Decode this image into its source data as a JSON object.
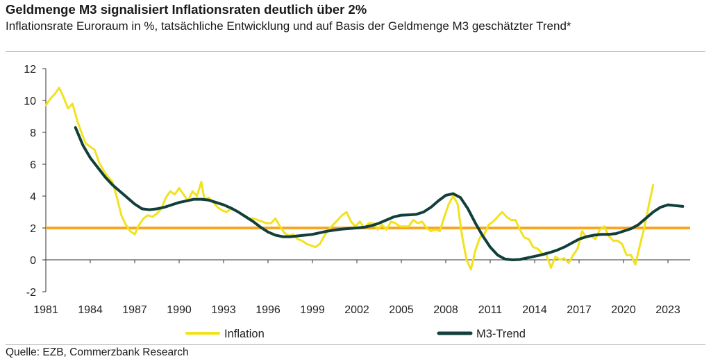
{
  "title": "Geldmenge M3 signalisiert Inflationsraten deutlich über 2%",
  "subtitle": "Inflationsrate Euroraum in %, tatsächliche Entwicklung und auf Basis der Geldmenge M3 geschätzter Trend*",
  "source": "Quelle: EZB, Commerzbank Research",
  "chart_data": {
    "type": "line",
    "xlim": [
      1981,
      2024.5
    ],
    "ylim": [
      -2,
      12
    ],
    "x_ticks": [
      "1981",
      "1984",
      "1987",
      "1990",
      "1993",
      "1996",
      "1999",
      "2002",
      "2005",
      "2008",
      "2011",
      "2014",
      "2017",
      "2020",
      "2023"
    ],
    "y_ticks": [
      "12",
      "10",
      "8",
      "6",
      "4",
      "2",
      "0",
      "-2"
    ],
    "reference_line": {
      "y": 2,
      "color": "#f5a623"
    },
    "legend_position": "bottom",
    "series": [
      {
        "name": "Inflation",
        "color": "#f2e21e",
        "x": [
          1981,
          1981.3,
          1981.6,
          1981.9,
          1982.2,
          1982.5,
          1982.8,
          1983.1,
          1983.4,
          1983.7,
          1984,
          1984.3,
          1984.6,
          1984.9,
          1985.2,
          1985.5,
          1985.8,
          1986.1,
          1986.4,
          1986.7,
          1987,
          1987.3,
          1987.6,
          1987.9,
          1988.2,
          1988.5,
          1988.8,
          1989.1,
          1989.4,
          1989.7,
          1990,
          1990.3,
          1990.6,
          1990.9,
          1991.2,
          1991.5,
          1991.7,
          1992,
          1992.3,
          1992.6,
          1992.9,
          1993.2,
          1993.5,
          1993.8,
          1994.1,
          1994.4,
          1994.7,
          1995,
          1995.3,
          1995.6,
          1995.9,
          1996.2,
          1996.5,
          1996.8,
          1997.1,
          1997.4,
          1997.7,
          1998,
          1998.3,
          1998.6,
          1998.9,
          1999.2,
          1999.5,
          1999.8,
          2000.1,
          2000.4,
          2000.7,
          2001,
          2001.3,
          2001.6,
          2001.9,
          2002.2,
          2002.5,
          2002.8,
          2003.1,
          2003.4,
          2003.7,
          2004,
          2004.3,
          2004.6,
          2004.9,
          2005.2,
          2005.5,
          2005.8,
          2006.1,
          2006.4,
          2006.7,
          2007,
          2007.3,
          2007.6,
          2007.9,
          2008.2,
          2008.5,
          2008.8,
          2009.1,
          2009.4,
          2009.7,
          2010,
          2010.3,
          2010.6,
          2010.9,
          2011.2,
          2011.5,
          2011.8,
          2012.1,
          2012.4,
          2012.7,
          2013,
          2013.3,
          2013.6,
          2013.9,
          2014.2,
          2014.5,
          2014.8,
          2015.1,
          2015.4,
          2015.7,
          2016,
          2016.3,
          2016.6,
          2016.9,
          2017.2,
          2017.5,
          2017.8,
          2018.1,
          2018.4,
          2018.7,
          2019,
          2019.3,
          2019.6,
          2019.9,
          2020.2,
          2020.5,
          2020.8,
          2021.1,
          2021.4,
          2021.7,
          2022
        ],
        "y": [
          9.7,
          10.1,
          10.4,
          10.8,
          10.2,
          9.5,
          9.8,
          8.8,
          8.0,
          7.3,
          7.1,
          6.9,
          6.1,
          5.6,
          5.2,
          4.9,
          3.9,
          2.8,
          2.2,
          1.8,
          1.6,
          2.2,
          2.6,
          2.8,
          2.7,
          2.9,
          3.2,
          3.9,
          4.3,
          4.1,
          4.5,
          4.1,
          3.7,
          4.3,
          4.0,
          4.9,
          3.8,
          3.9,
          3.6,
          3.3,
          3.1,
          3.0,
          3.2,
          3.1,
          2.9,
          2.8,
          2.6,
          2.6,
          2.5,
          2.4,
          2.3,
          2.3,
          2.6,
          2.1,
          1.7,
          1.5,
          1.6,
          1.3,
          1.2,
          1.0,
          0.9,
          0.8,
          1.0,
          1.5,
          1.9,
          2.2,
          2.5,
          2.8,
          3.0,
          2.4,
          2.1,
          2.4,
          2.0,
          2.3,
          2.3,
          1.9,
          2.2,
          1.9,
          2.4,
          2.3,
          2.1,
          2.1,
          2.1,
          2.5,
          2.3,
          2.4,
          2.0,
          1.8,
          1.9,
          1.8,
          2.7,
          3.5,
          4.0,
          3.5,
          1.5,
          0.0,
          -0.6,
          0.6,
          1.4,
          1.6,
          2.2,
          2.4,
          2.7,
          3.0,
          2.7,
          2.5,
          2.5,
          1.9,
          1.4,
          1.3,
          0.8,
          0.7,
          0.4,
          0.3,
          -0.5,
          0.2,
          0.0,
          0.1,
          -0.2,
          0.3,
          0.7,
          1.8,
          1.4,
          1.5,
          1.3,
          1.9,
          2.1,
          1.5,
          1.2,
          1.2,
          1.0,
          0.3,
          0.3,
          -0.3,
          0.9,
          2.0,
          3.4,
          4.7
        ]
      },
      {
        "name": "M3-Trend",
        "color": "#123f3a",
        "x": [
          1983,
          1983.5,
          1984,
          1984.5,
          1985,
          1985.5,
          1986,
          1986.5,
          1987,
          1987.5,
          1988,
          1988.5,
          1989,
          1989.5,
          1990,
          1990.5,
          1991,
          1991.5,
          1992,
          1992.5,
          1993,
          1993.5,
          1994,
          1994.5,
          1995,
          1995.5,
          1996,
          1996.5,
          1997,
          1997.5,
          1998,
          1998.5,
          1999,
          1999.5,
          2000,
          2000.5,
          2001,
          2001.5,
          2002,
          2002.5,
          2003,
          2003.5,
          2004,
          2004.5,
          2005,
          2005.5,
          2006,
          2006.5,
          2007,
          2007.5,
          2008,
          2008.5,
          2009,
          2009.5,
          2010,
          2010.5,
          2011,
          2011.5,
          2012,
          2012.5,
          2013,
          2013.5,
          2014,
          2014.5,
          2015,
          2015.5,
          2016,
          2016.5,
          2017,
          2017.5,
          2018,
          2018.5,
          2019,
          2019.5,
          2020,
          2020.5,
          2021,
          2021.5,
          2022,
          2022.5,
          2023,
          2023.5,
          2024
        ],
        "y": [
          8.3,
          7.2,
          6.4,
          5.8,
          5.2,
          4.7,
          4.3,
          3.9,
          3.5,
          3.2,
          3.15,
          3.2,
          3.3,
          3.45,
          3.6,
          3.7,
          3.8,
          3.8,
          3.75,
          3.6,
          3.45,
          3.25,
          3.0,
          2.7,
          2.4,
          2.05,
          1.75,
          1.55,
          1.45,
          1.45,
          1.5,
          1.55,
          1.6,
          1.7,
          1.8,
          1.87,
          1.93,
          1.97,
          2.0,
          2.05,
          2.15,
          2.3,
          2.5,
          2.7,
          2.8,
          2.82,
          2.85,
          3.0,
          3.3,
          3.7,
          4.05,
          4.15,
          3.9,
          3.2,
          2.3,
          1.5,
          0.8,
          0.3,
          0.05,
          0.0,
          0.02,
          0.12,
          0.22,
          0.32,
          0.45,
          0.6,
          0.8,
          1.05,
          1.3,
          1.45,
          1.55,
          1.6,
          1.6,
          1.65,
          1.8,
          1.95,
          2.2,
          2.6,
          3.0,
          3.3,
          3.45,
          3.4,
          3.35
        ]
      }
    ]
  }
}
